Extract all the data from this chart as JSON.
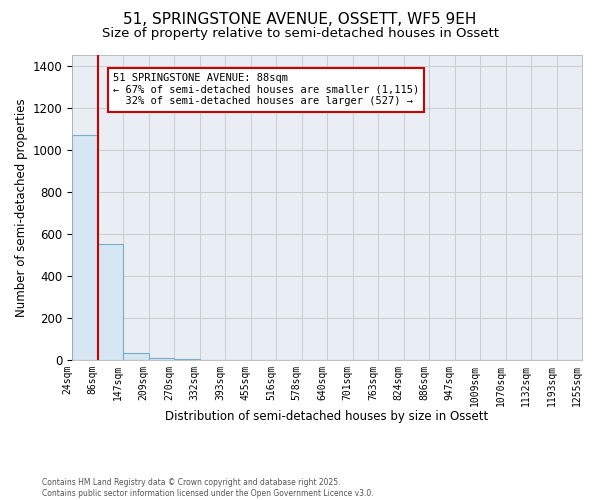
{
  "title": "51, SPRINGSTONE AVENUE, OSSETT, WF5 9EH",
  "subtitle": "Size of property relative to semi-detached houses in Ossett",
  "xlabel": "Distribution of semi-detached houses by size in Ossett",
  "ylabel": "Number of semi-detached properties",
  "bin_labels": [
    "24sqm",
    "86sqm",
    "147sqm",
    "209sqm",
    "270sqm",
    "332sqm",
    "393sqm",
    "455sqm",
    "516sqm",
    "578sqm",
    "640sqm",
    "701sqm",
    "763sqm",
    "824sqm",
    "886sqm",
    "947sqm",
    "1009sqm",
    "1070sqm",
    "1132sqm",
    "1193sqm",
    "1255sqm"
  ],
  "bar_heights": [
    1070,
    550,
    35,
    10,
    5,
    0,
    0,
    0,
    0,
    0,
    0,
    0,
    0,
    0,
    0,
    0,
    0,
    0,
    0,
    0
  ],
  "bar_color": "#d6e6f2",
  "bar_edge_color": "#7aadcc",
  "grid_color": "#cccccc",
  "background_color": "#e8eef4",
  "red_line_x": 1,
  "annotation_text": "51 SPRINGSTONE AVENUE: 88sqm\n← 67% of semi-detached houses are smaller (1,115)\n  32% of semi-detached houses are larger (527) →",
  "ylim": [
    0,
    1450
  ],
  "yticks": [
    0,
    200,
    400,
    600,
    800,
    1000,
    1200,
    1400
  ],
  "footer_text": "Contains HM Land Registry data © Crown copyright and database right 2025.\nContains public sector information licensed under the Open Government Licence v3.0.",
  "title_fontsize": 11,
  "subtitle_fontsize": 9.5,
  "axis_label_fontsize": 8.5,
  "tick_fontsize": 7,
  "annot_fontsize": 7.5
}
